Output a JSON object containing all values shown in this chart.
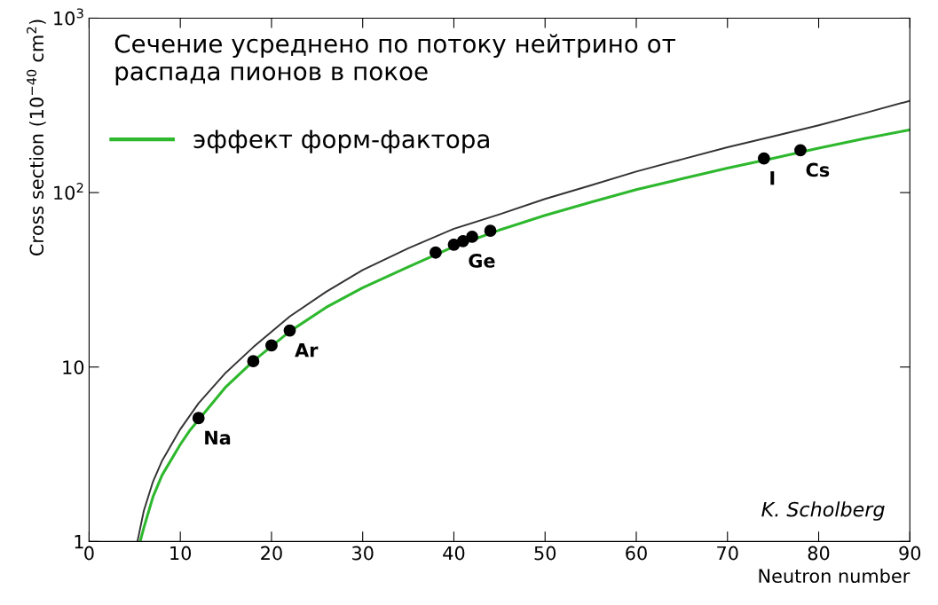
{
  "chart_data": {
    "type": "line",
    "xlabel": "Neutron number",
    "ylabel": "Cross section (10$^{−40}$ cm$^{2}$)",
    "log": "y",
    "xlim": [
      0,
      90
    ],
    "xticks": [
      0,
      10,
      20,
      30,
      40,
      50,
      60,
      70,
      80,
      90
    ],
    "ylim": [
      1,
      1000
    ],
    "yticks": [
      1,
      10,
      {
        "value": 100,
        "label": "10$^{2}$"
      },
      {
        "value": 1000,
        "label": "10$^{3}$"
      }
    ],
    "grid": false,
    "legend": "top left",
    "series": [
      {
        "color": "#333333",
        "x": [
          5.3,
          6,
          7,
          8,
          10,
          12,
          15,
          18,
          22,
          26,
          30,
          35,
          40,
          45,
          50,
          55,
          60,
          65,
          70,
          75,
          80,
          85,
          90
        ],
        "values": [
          1,
          1.5,
          2.2,
          2.9,
          4.4,
          6.2,
          9.3,
          13,
          19.5,
          27,
          36,
          48,
          62,
          75,
          92,
          110,
          132,
          155,
          182,
          210,
          243,
          285,
          336
        ]
      },
      {
        "name": "эффект форм-фактора",
        "color": "#2db82d",
        "x": [
          5.6,
          6,
          7,
          8,
          10,
          11,
          15,
          18,
          22,
          26,
          30,
          35,
          40,
          45,
          50,
          55,
          60,
          65,
          70,
          75,
          80,
          85,
          90
        ],
        "values": [
          1,
          1.2,
          1.8,
          2.4,
          3.6,
          4.3,
          7.7,
          10.8,
          16,
          22,
          28.5,
          37.5,
          49,
          61,
          74,
          88,
          104,
          120,
          138,
          157,
          180,
          204,
          229
        ]
      },
      {
        "type": "scatter",
        "color": "#000000",
        "marker": "circle",
        "x": [
          12,
          18,
          20,
          22,
          38,
          40,
          41,
          42,
          44,
          74,
          78
        ],
        "values": [
          5.1,
          10.8,
          13.3,
          16.2,
          45.3,
          50.3,
          52.7,
          55.8,
          60.4,
          157,
          175
        ]
      }
    ],
    "annotations": [
      "Сечение усреднено по потоку нейтрино от распада пионов в покое",
      "K. Scholberg",
      {
        "text": "Na",
        "x": 12,
        "y": 5.1
      },
      {
        "text": "Ar",
        "x": 22,
        "y": 16.2
      },
      {
        "text": "Ge",
        "x": 41,
        "y": 52.7
      },
      {
        "text": "I",
        "x": 74,
        "y": 157
      },
      {
        "text": "Cs",
        "x": 78,
        "y": 175
      }
    ]
  }
}
